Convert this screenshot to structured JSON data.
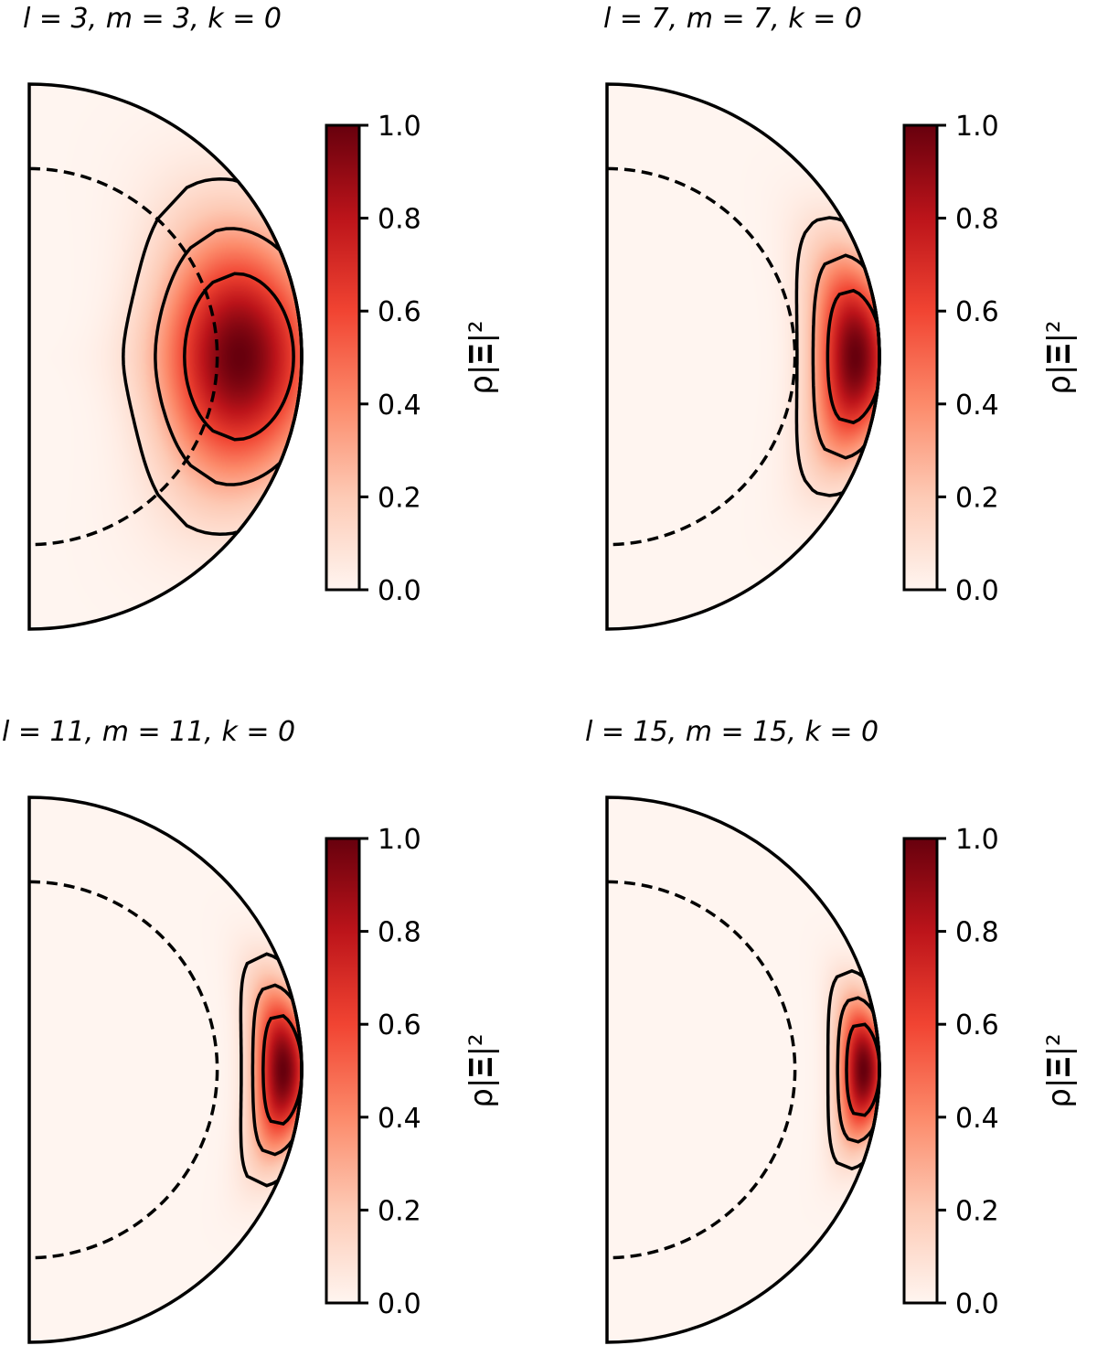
{
  "figure": {
    "colorbar_label": "ρ|𝚵|²",
    "colormap": "Reds",
    "colorbar_colors": [
      "#fff5f0",
      "#fdcab5",
      "#fc8a6a",
      "#f14432",
      "#bc141a",
      "#67000d"
    ]
  },
  "chart_data": [
    {
      "type": "heatmap",
      "title": "l = 3, m = 3, k = 0",
      "l": 3,
      "m": 3,
      "k": 0,
      "quantity": "ρ|𝚵|² (normalized)",
      "colorbar_range": [
        0.0,
        1.0
      ],
      "colorbar_ticks": [
        "0.0",
        "0.2",
        "0.4",
        "0.6",
        "0.8",
        "1.0"
      ],
      "peak_radius": 0.77,
      "peak_value": 1.0,
      "radial_width": 0.28,
      "latitudinal_width": 0.55,
      "inner_boundary_radius": 0.69,
      "contour_levels": [
        0.1,
        0.3,
        0.6
      ]
    },
    {
      "type": "heatmap",
      "title": "l = 7, m = 7, k = 0",
      "l": 7,
      "m": 7,
      "k": 0,
      "quantity": "ρ|𝚵|² (normalized)",
      "colorbar_range": [
        0.0,
        1.0
      ],
      "colorbar_ticks": [
        "0.0",
        "0.2",
        "0.4",
        "0.6",
        "0.8",
        "1.0"
      ],
      "peak_radius": 0.91,
      "peak_value": 1.0,
      "radial_width": 0.14,
      "latitudinal_width": 0.38,
      "inner_boundary_radius": 0.69,
      "contour_levels": [
        0.1,
        0.3,
        0.6
      ]
    },
    {
      "type": "heatmap",
      "title": "l = 11, m = 11, k = 0",
      "l": 11,
      "m": 11,
      "k": 0,
      "quantity": "ρ|𝚵|² (normalized)",
      "colorbar_range": [
        0.0,
        1.0
      ],
      "colorbar_ticks": [
        "0.0",
        "0.2",
        "0.4",
        "0.6",
        "0.8",
        "1.0"
      ],
      "peak_radius": 0.93,
      "peak_value": 1.0,
      "radial_width": 0.1,
      "latitudinal_width": 0.31,
      "inner_boundary_radius": 0.69,
      "contour_levels": [
        0.1,
        0.3,
        0.6
      ]
    },
    {
      "type": "heatmap",
      "title": "l = 15, m = 15, k = 0",
      "l": 15,
      "m": 15,
      "k": 0,
      "quantity": "ρ|𝚵|² (normalized)",
      "colorbar_range": [
        0.0,
        1.0
      ],
      "colorbar_ticks": [
        "0.0",
        "0.2",
        "0.4",
        "0.6",
        "0.8",
        "1.0"
      ],
      "peak_radius": 0.94,
      "peak_value": 1.0,
      "radial_width": 0.085,
      "latitudinal_width": 0.26,
      "inner_boundary_radius": 0.69,
      "contour_levels": [
        0.1,
        0.3,
        0.6
      ]
    }
  ]
}
